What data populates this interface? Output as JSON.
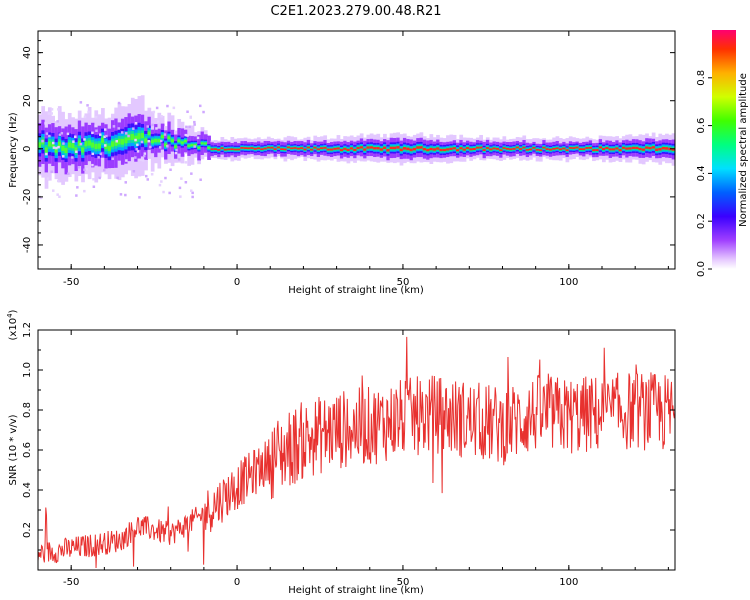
{
  "title": "C2E1.2023.279.00.48.R21",
  "chart_data": [
    {
      "type": "heatmap",
      "xlabel": "Height of straight line (km)",
      "ylabel": "Frequency (Hz)",
      "xlim": [
        -60,
        132
      ],
      "ylim": [
        -50,
        49
      ],
      "x_ticks": [
        -50,
        0,
        50,
        100
      ],
      "y_ticks": [
        -40,
        -20,
        0,
        20,
        40
      ],
      "colorbar": {
        "label": "Normalized spectral amplitude",
        "range": [
          0,
          1
        ],
        "ticks": [
          0.0,
          0.2,
          0.4,
          0.6,
          0.8
        ]
      },
      "band": {
        "x": [
          -60,
          -50,
          -40,
          -33,
          -30,
          -27,
          -20,
          -12,
          -8,
          0,
          20,
          50,
          80,
          100,
          132
        ],
        "center_hz": [
          1,
          0,
          2,
          3,
          4,
          5,
          3,
          2,
          0,
          0,
          0,
          0,
          0,
          0,
          0
        ],
        "halfwidth_hz": [
          6,
          6,
          6,
          7,
          7,
          4,
          3,
          2,
          2,
          2,
          2,
          3,
          2,
          2,
          3
        ]
      },
      "grid": false
    },
    {
      "type": "line",
      "xlabel": "Height of straight line (km)",
      "ylabel": "SNR (10 * v/v)",
      "y_scale_label": "(x10",
      "y_scale_exp": "4",
      "xlim": [
        -60,
        132
      ],
      "ylim": [
        0,
        1.2
      ],
      "x_ticks": [
        -50,
        0,
        50,
        100
      ],
      "y_ticks": [
        0.2,
        0.4,
        0.6,
        0.8,
        1.0,
        1.2
      ],
      "series": [
        {
          "color": "#e8312f",
          "trend_x": [
            -60,
            -45,
            -35,
            -30,
            -25,
            -20,
            -10,
            0,
            10,
            20,
            30,
            40,
            50,
            60,
            70,
            80,
            90,
            100,
            110,
            120,
            132
          ],
          "trend_y": [
            0.08,
            0.12,
            0.15,
            0.22,
            0.2,
            0.18,
            0.28,
            0.42,
            0.55,
            0.65,
            0.7,
            0.72,
            0.76,
            0.78,
            0.75,
            0.72,
            0.78,
            0.77,
            0.78,
            0.8,
            0.78
          ]
        }
      ],
      "grid": false
    }
  ]
}
